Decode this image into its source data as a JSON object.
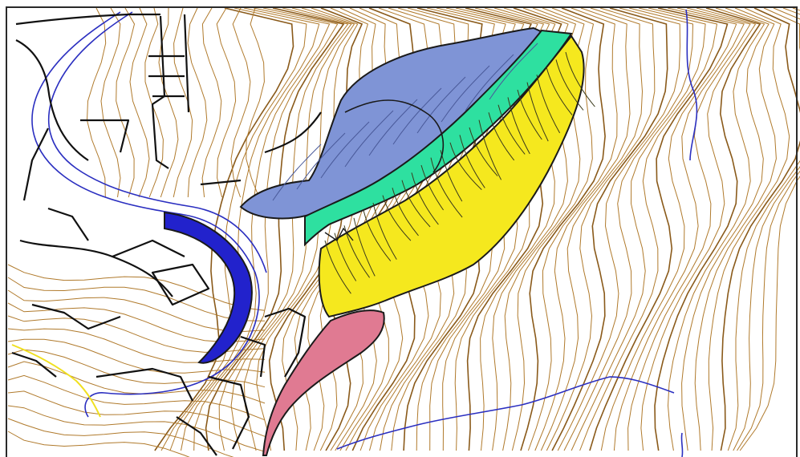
{
  "map": {
    "colors": {
      "background": "#ffffff",
      "frame": "#2a2a2a",
      "contour": "#b07a2c",
      "contour_dark": "#8a5a1a",
      "road": "#111111",
      "river": "#2b2fc0",
      "stream": "#3a2fa8",
      "landslide_crown": "#7f94d6",
      "landslide_scarp": "#2ee0a0",
      "landslide_body": "#f5e81e",
      "landslide_toe": "#e07a92",
      "dam_reservoir": "#2222cc",
      "yellow_edge": "#f0e020"
    },
    "zones": [
      {
        "id": "crown",
        "fill_key": "landslide_crown"
      },
      {
        "id": "scarp",
        "fill_key": "landslide_scarp"
      },
      {
        "id": "body",
        "fill_key": "landslide_body"
      },
      {
        "id": "toe",
        "fill_key": "landslide_toe"
      },
      {
        "id": "reservoir",
        "fill_key": "dam_reservoir"
      }
    ]
  }
}
